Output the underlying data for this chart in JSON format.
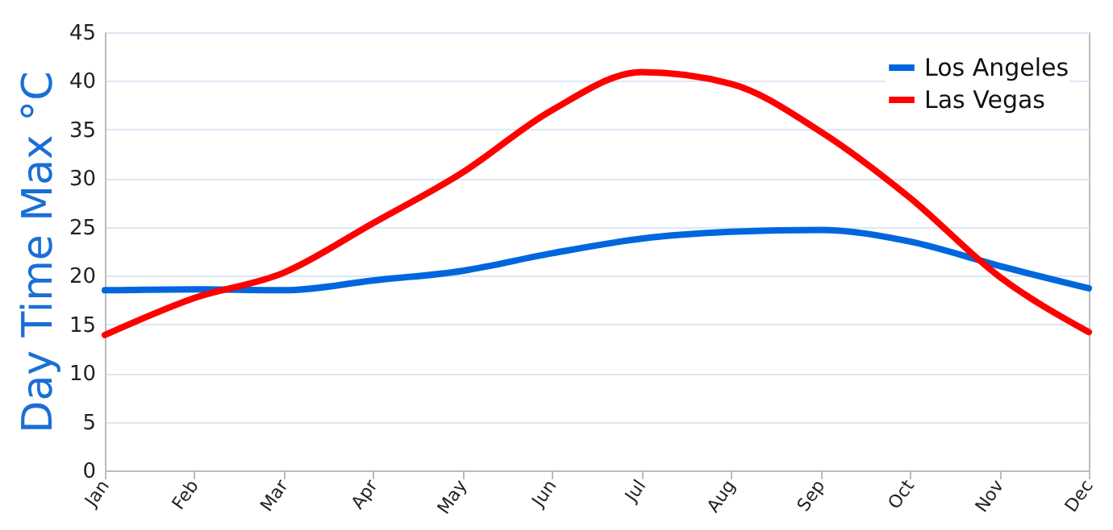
{
  "chart_data": {
    "type": "line",
    "ylabel": "Day Time Max °C",
    "categories": [
      "Jan",
      "Feb",
      "Mar",
      "Apr",
      "May",
      "Jun",
      "Jul",
      "Aug",
      "Sep",
      "Oct",
      "Nov",
      "Dec"
    ],
    "series": [
      {
        "name": "Los Angeles",
        "color": "#0066dd",
        "values": [
          18.5,
          18.6,
          18.5,
          19.5,
          20.5,
          22.3,
          23.8,
          24.5,
          24.7,
          23.5,
          21,
          18.7
        ]
      },
      {
        "name": "Las Vegas",
        "color": "#ff0000",
        "values": [
          13.9,
          17.7,
          20.3,
          25.4,
          30.6,
          37,
          40.9,
          39.7,
          34.8,
          28,
          19.9,
          14.2
        ]
      }
    ],
    "ylim": [
      0,
      45
    ],
    "yticks": [
      0,
      5,
      10,
      15,
      20,
      25,
      30,
      35,
      40,
      45
    ],
    "grid": "y",
    "legend": "top right",
    "marker": "none",
    "line_style": "solid"
  }
}
